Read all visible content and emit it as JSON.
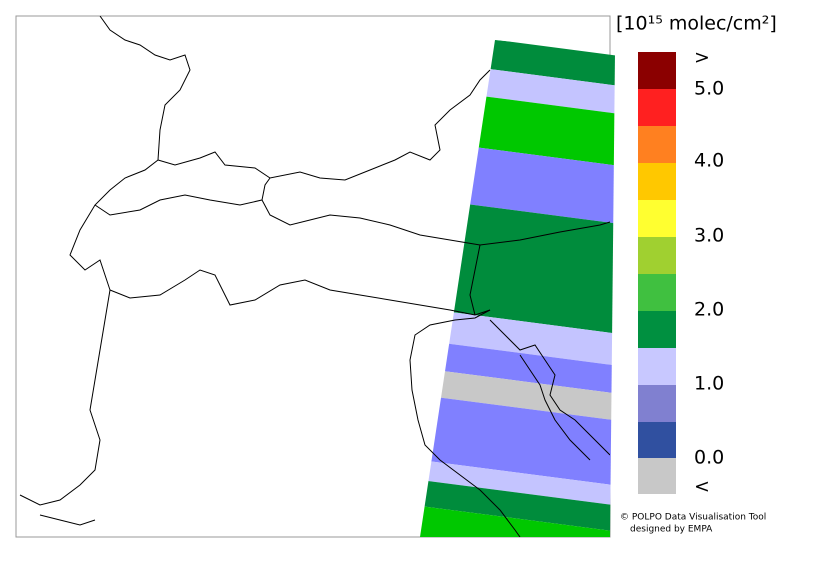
{
  "legend": {
    "unit": "[10¹⁵ molec/cm²]",
    "labels": [
      ">",
      "5.0",
      "4.0",
      "3.0",
      "2.0",
      "1.0",
      "0.0",
      "<"
    ]
  },
  "credit": [
    "© POLPO Data Visualisation Tool",
    "designed by EMPA"
  ]
}
